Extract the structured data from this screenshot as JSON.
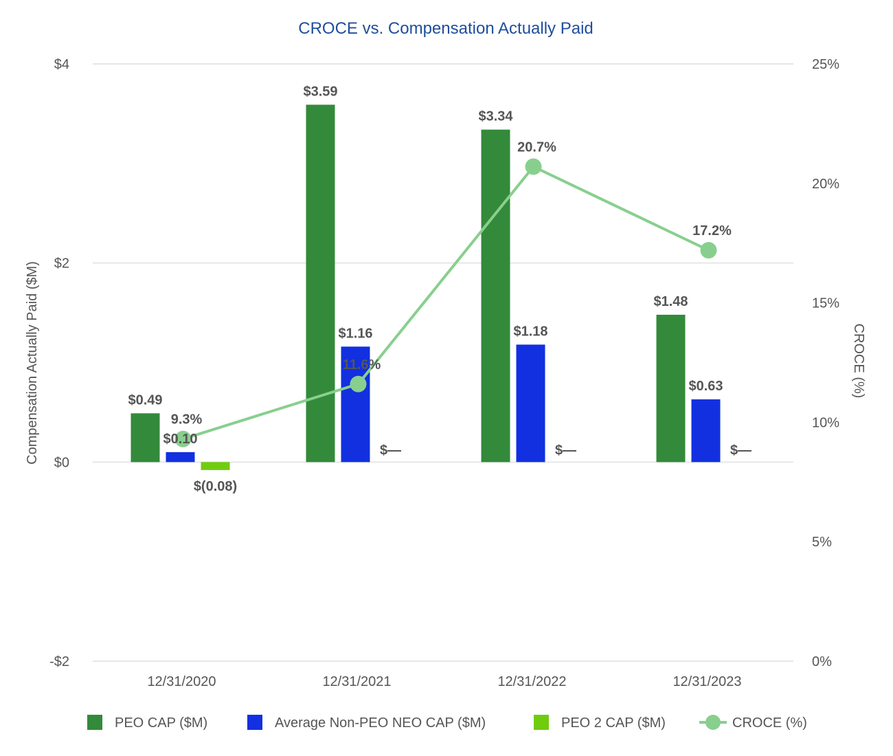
{
  "chart_data": {
    "type": "bar",
    "title": "CROCE vs. Compensation Actually Paid",
    "categories": [
      "12/31/2020",
      "12/31/2021",
      "12/31/2022",
      "12/31/2023"
    ],
    "ylabel": "Compensation Actually Paid ($M)",
    "ylim": [
      -2,
      4
    ],
    "y_ticks": [
      {
        "value": 4,
        "label": "$4"
      },
      {
        "value": 2,
        "label": "$2"
      },
      {
        "value": 0,
        "label": "$0"
      },
      {
        "value": -2,
        "label": "-$2"
      }
    ],
    "y2label": "CROCE (%)",
    "y2lim": [
      0,
      25
    ],
    "y2_ticks": [
      {
        "value": 25,
        "label": "25%"
      },
      {
        "value": 20,
        "label": "20%"
      },
      {
        "value": 15,
        "label": "15%"
      },
      {
        "value": 10,
        "label": "10%"
      },
      {
        "value": 5,
        "label": "5%"
      },
      {
        "value": 0,
        "label": "0%"
      }
    ],
    "grid": true,
    "legend_position": "bottom",
    "series": [
      {
        "name": "PEO CAP ($M)",
        "kind": "bar",
        "color": "#338a3a",
        "values": [
          0.49,
          3.59,
          3.34,
          1.48
        ],
        "labels": [
          "$0.49",
          "$3.59",
          "$3.34",
          "$1.48"
        ]
      },
      {
        "name": "Average Non-PEO NEO CAP ($M)",
        "kind": "bar",
        "color": "#1230e0",
        "values": [
          0.1,
          1.16,
          1.18,
          0.63
        ],
        "labels": [
          "$0.10",
          "$1.16",
          "$1.18",
          "$0.63"
        ]
      },
      {
        "name": "PEO 2 CAP ($M)",
        "kind": "bar",
        "color": "#70cc0f",
        "values": [
          -0.08,
          0,
          0,
          0
        ],
        "labels": [
          "$(0.08)",
          "$—",
          "$—",
          "$—"
        ]
      },
      {
        "name": "CROCE (%)",
        "kind": "line",
        "axis": "right",
        "color": "#88cf8e",
        "values": [
          9.3,
          11.6,
          20.7,
          17.2
        ],
        "labels": [
          "9.3%",
          "11.6%",
          "20.7%",
          "17.2%"
        ]
      }
    ]
  }
}
